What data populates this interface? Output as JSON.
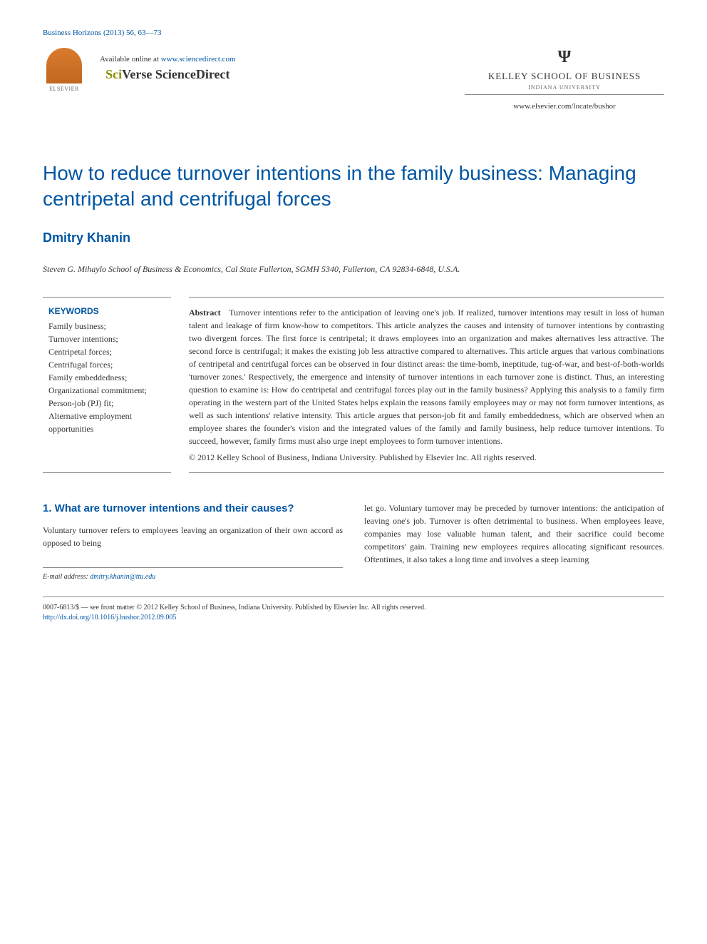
{
  "journal_ref": "Business Horizons (2013) 56, 63—73",
  "header": {
    "elsevier_label": "ELSEVIER",
    "available_text": "Available online at ",
    "available_link": "www.sciencedirect.com",
    "sciverse_sci": "Sci",
    "sciverse_verse": "Verse",
    "sciverse_rest": " ScienceDirect",
    "iu_trident": "Ψ",
    "kelley": "KELLEY SCHOOL OF BUSINESS",
    "iu": "INDIANA UNIVERSITY",
    "journal_url": "www.elsevier.com/locate/bushor"
  },
  "article": {
    "title": "How to reduce turnover intentions in the family business: Managing centripetal and centrifugal forces",
    "author": "Dmitry Khanin",
    "affiliation": "Steven G. Mihaylo School of Business & Economics, Cal State Fullerton, SGMH 5340, Fullerton, CA 92834-6848, U.S.A."
  },
  "keywords": {
    "title": "KEYWORDS",
    "list": "Family business;\nTurnover intentions;\nCentripetal forces;\nCentrifugal forces;\nFamily embeddedness;\nOrganizational commitment;\nPerson-job (PJ) fit;\nAlternative employment opportunities"
  },
  "abstract": {
    "label": "Abstract",
    "text": "Turnover intentions refer to the anticipation of leaving one's job. If realized, turnover intentions may result in loss of human talent and leakage of firm know-how to competitors. This article analyzes the causes and intensity of turnover intentions by contrasting two divergent forces. The first force is centripetal; it draws employees into an organization and makes alternatives less attractive. The second force is centrifugal; it makes the existing job less attractive compared to alternatives. This article argues that various combinations of centripetal and centrifugal forces can be observed in four distinct areas: the time-bomb, ineptitude, tug-of-war, and best-of-both-worlds 'turnover zones.' Respectively, the emergence and intensity of turnover intentions in each turnover zone is distinct. Thus, an interesting question to examine is: How do centripetal and centrifugal forces play out in the family business? Applying this analysis to a family firm operating in the western part of the United States helps explain the reasons family employees may or may not form turnover intentions, as well as such intentions' relative intensity. This article argues that person-job fit and family embeddedness, which are observed when an employee shares the founder's vision and the integrated values of the family and family business, help reduce turnover intentions. To succeed, however, family firms must also urge inept employees to form turnover intentions.",
    "copyright": "© 2012 Kelley School of Business, Indiana University. Published by Elsevier Inc. All rights reserved."
  },
  "body": {
    "section_heading": "1. What are turnover intentions and their causes?",
    "col1_text": "Voluntary turnover refers to employees leaving an organization of their own accord as opposed to being",
    "col2_text": "let go. Voluntary turnover may be preceded by turnover intentions: the anticipation of leaving one's job. Turnover is often detrimental to business. When employees leave, companies may lose valuable human talent, and their sacrifice could become competitors' gain. Training new employees requires allocating significant resources. Oftentimes, it also takes a long time and involves a steep learning"
  },
  "email": {
    "label": "E-mail address: ",
    "address": "dmitry.khanin@ttu.edu"
  },
  "footer": {
    "issn_text": "0007-6813/$ — see front matter © 2012 Kelley School of Business, Indiana University. Published by Elsevier Inc. All rights reserved.",
    "doi": "http://dx.doi.org/10.1016/j.bushor.2012.09.005"
  }
}
